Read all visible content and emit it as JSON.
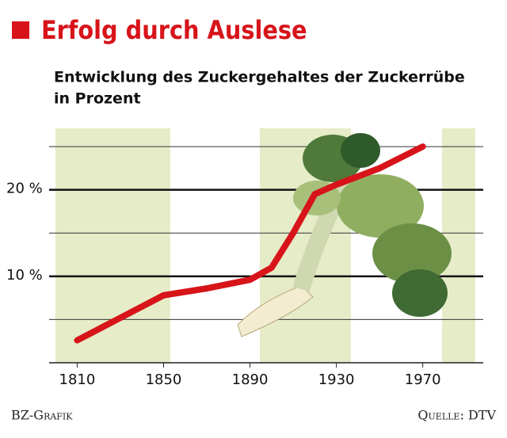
{
  "chart_data": {
    "type": "line",
    "title": "Erfolg durch Auslese",
    "subtitle_lines": [
      "Entwicklung des Zuckergehaltes der Zuckerrübe",
      "in Prozent"
    ],
    "x": [
      1810,
      1830,
      1850,
      1870,
      1890,
      1900,
      1910,
      1920,
      1930,
      1950,
      1970
    ],
    "series": [
      {
        "color": "#d7141a",
        "values": [
          2.6,
          5.2,
          7.8,
          8.6,
          9.6,
          11,
          15,
          19.5,
          20.6,
          22.5,
          25
        ]
      }
    ],
    "xlim": [
      1797,
      1998
    ],
    "xticks": [
      1810,
      1850,
      1890,
      1930,
      1970
    ],
    "ylim": [
      0,
      27.3
    ],
    "yticks": [
      {
        "value": 10,
        "label": "10 %"
      },
      {
        "value": 20,
        "label": "20 %"
      }
    ],
    "minor_gridlines": [
      5,
      15,
      25
    ],
    "grid": true,
    "credit": "BZ-Grafik",
    "source": "Quelle: DTV"
  }
}
